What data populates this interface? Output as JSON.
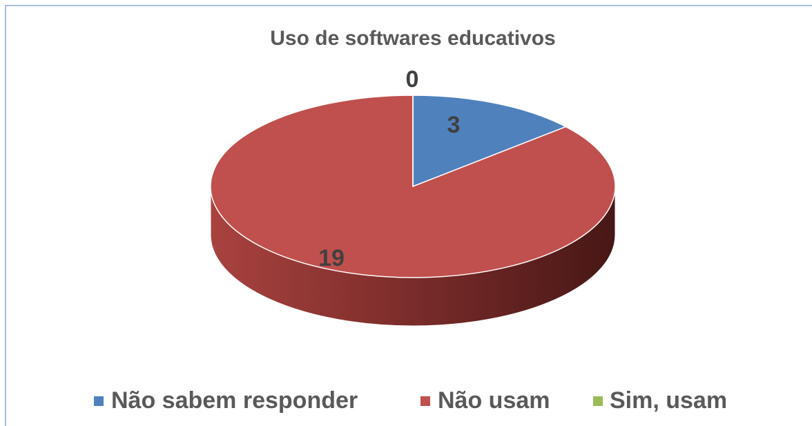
{
  "chart_data": {
    "type": "pie",
    "title": "Uso de softwares educativos",
    "categories": [
      "Não sabem responder",
      "Não usam",
      "Sim, usam"
    ],
    "values": [
      3,
      19,
      0
    ],
    "colors": [
      "#4f81bd",
      "#c0504d",
      "#9bbb59"
    ],
    "legend": "bottom"
  }
}
